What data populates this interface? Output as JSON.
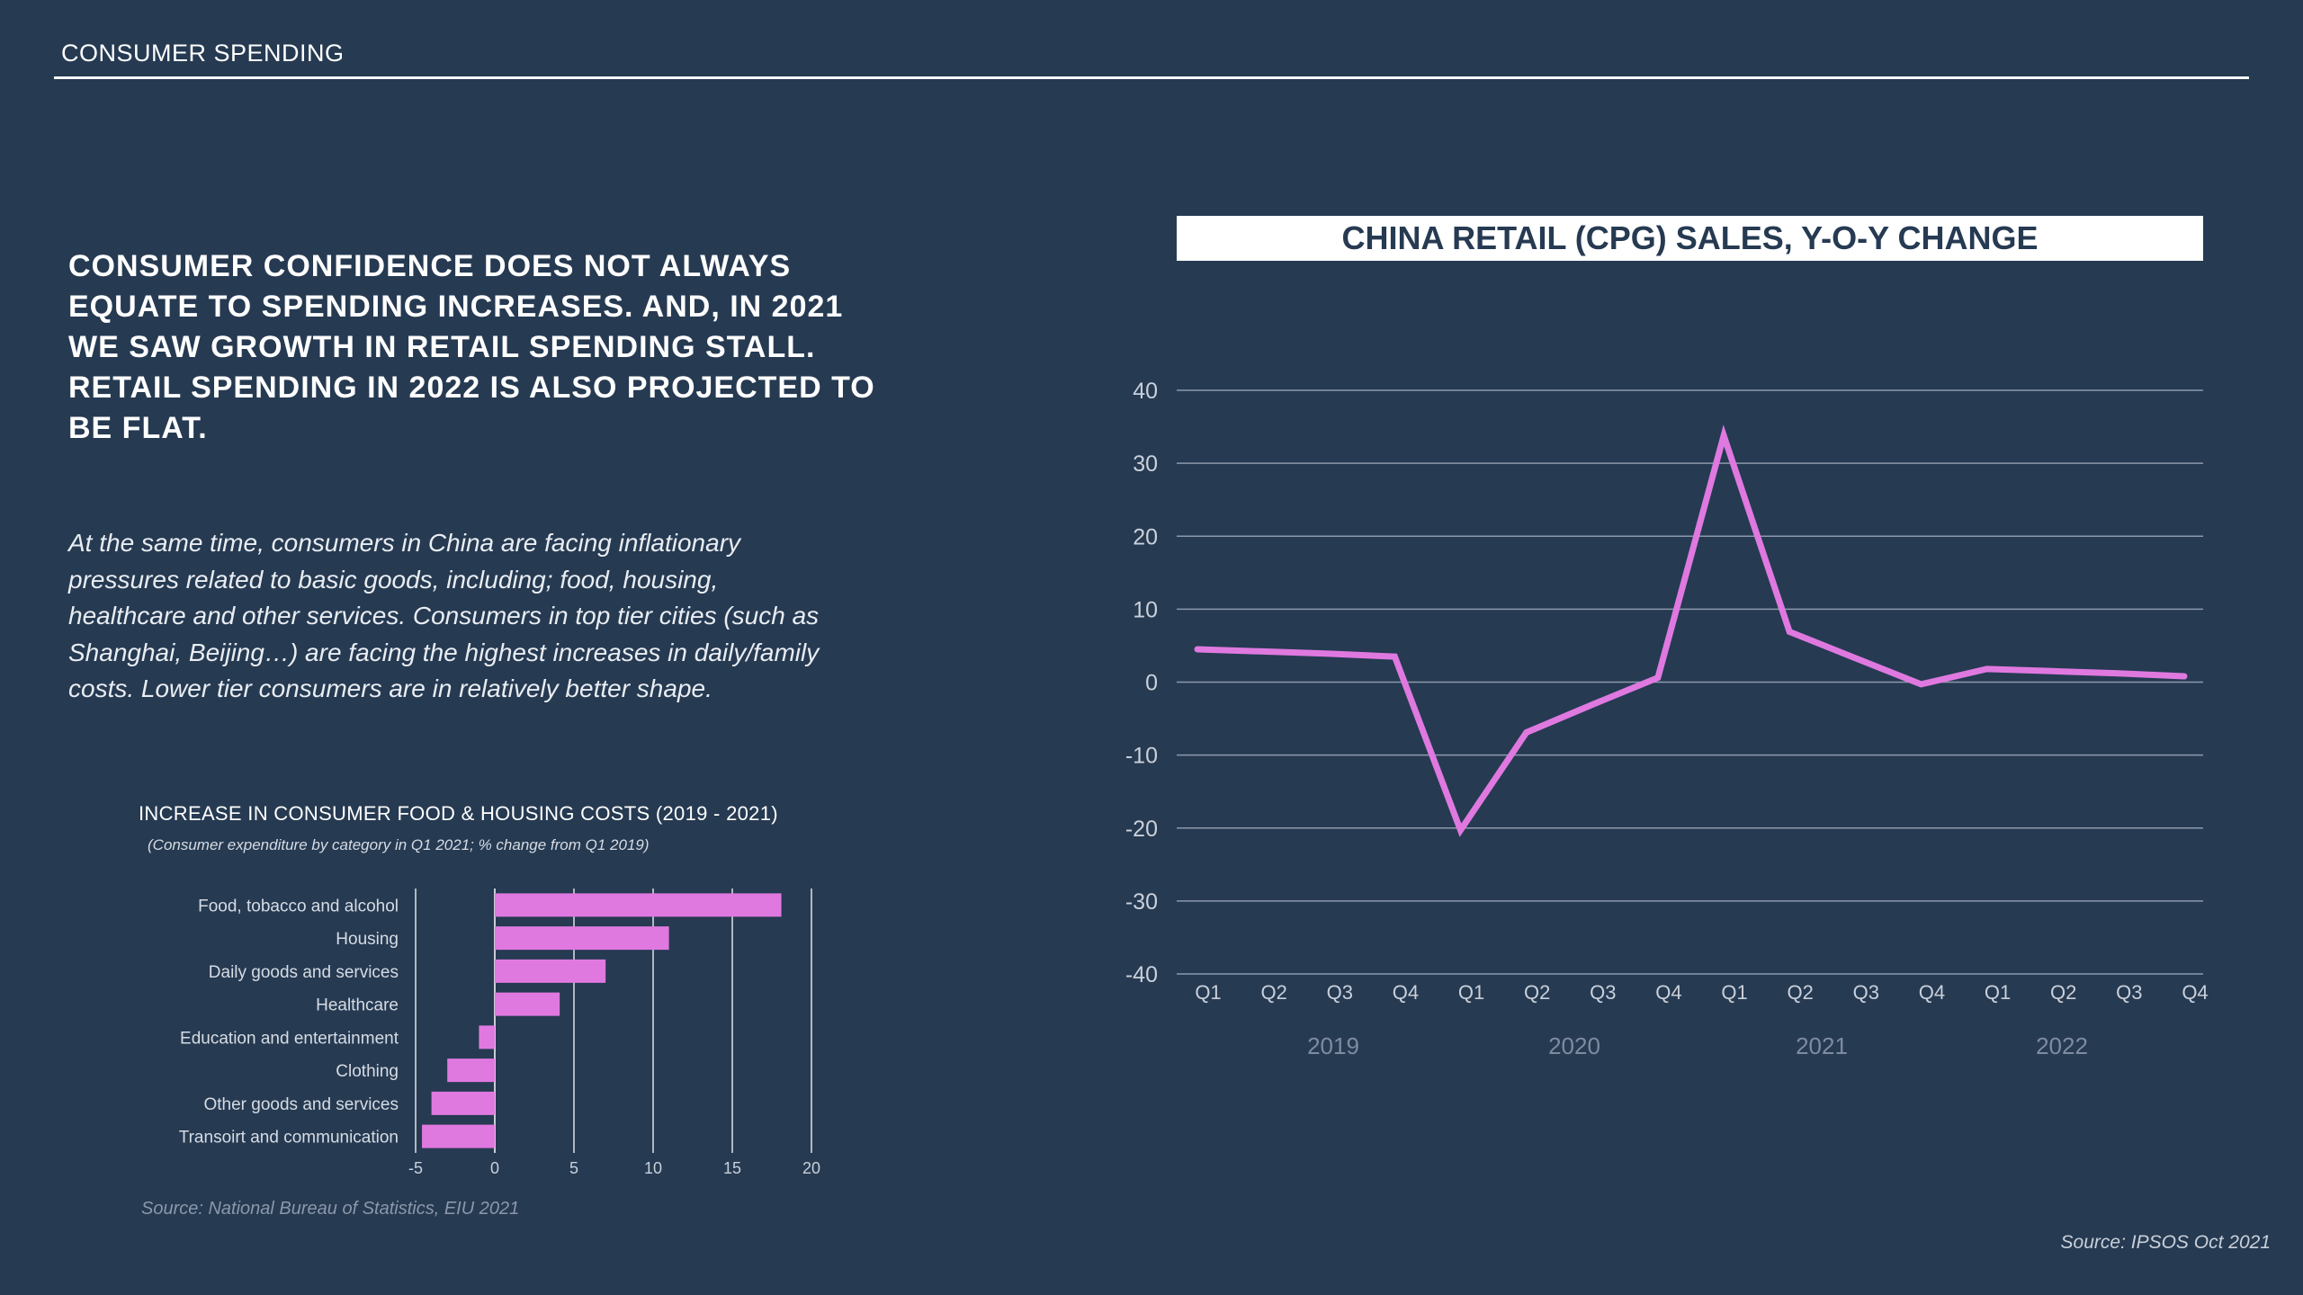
{
  "header": {
    "title": "CONSUMER SPENDING"
  },
  "headline": "CONSUMER CONFIDENCE DOES NOT ALWAYS EQUATE TO SPENDING INCREASES. AND, IN 2021 WE SAW GROWTH IN RETAIL SPENDING STALL. RETAIL SPENDING IN 2022 IS ALSO PROJECTED TO BE FLAT.",
  "body_text": "At the same time, consumers in China are facing inflationary pressures related to basic goods, including; food, housing, healthcare and other services. Consumers in top tier cities (such as Shanghai, Beijing…) are facing the highest increases in daily/family costs. Lower tier consumers are in relatively better shape.",
  "colors": {
    "background": "#263a52",
    "accent": "#df79e0",
    "grid": "#8c99ab"
  },
  "chart_data": [
    {
      "type": "bar",
      "orientation": "horizontal",
      "title": "INCREASE IN CONSUMER FOOD & HOUSING COSTS (2019 - 2021)",
      "subtitle": "(Consumer expenditure by category in Q1 2021; % change from Q1 2019)",
      "categories": [
        "Food, tobacco and alcohol",
        "Housing",
        "Daily goods and services",
        "Healthcare",
        "Education and entertainment",
        "Clothing",
        "Other goods and services",
        "Transoirt and communication"
      ],
      "values": [
        18.1,
        11,
        7,
        4.1,
        -1,
        -3,
        -4,
        -4.6
      ],
      "xlim": [
        -5,
        20
      ],
      "xticks": [
        "-5",
        "0",
        "5",
        "10",
        "15",
        "20"
      ],
      "grid": true,
      "source": "Source: National Bureau of Statistics, EIU 2021"
    },
    {
      "type": "line",
      "title": "CHINA RETAIL (CPG) SALES, Y-O-Y CHANGE",
      "x": [
        "Q1",
        "Q2",
        "Q3",
        "Q4",
        "Q1",
        "Q2",
        "Q3",
        "Q4",
        "Q1",
        "Q2",
        "Q3",
        "Q4",
        "Q1",
        "Q2",
        "Q3",
        "Q4"
      ],
      "years": [
        "2019",
        "2020",
        "2021",
        "2022"
      ],
      "values": [
        4.5,
        4.2,
        3.9,
        3.5,
        -20.3,
        -6.9,
        -3.1,
        0.6,
        33.8,
        6.9,
        3.3,
        -0.3,
        1.8,
        1.5,
        1.2,
        0.8
      ],
      "ylim": [
        -40,
        40
      ],
      "yticks": [
        "40",
        "30",
        "20",
        "10",
        "0",
        "-10",
        "-20",
        "-30",
        "-40"
      ],
      "grid": true,
      "source": "Source: IPSOS Oct 2021"
    }
  ]
}
